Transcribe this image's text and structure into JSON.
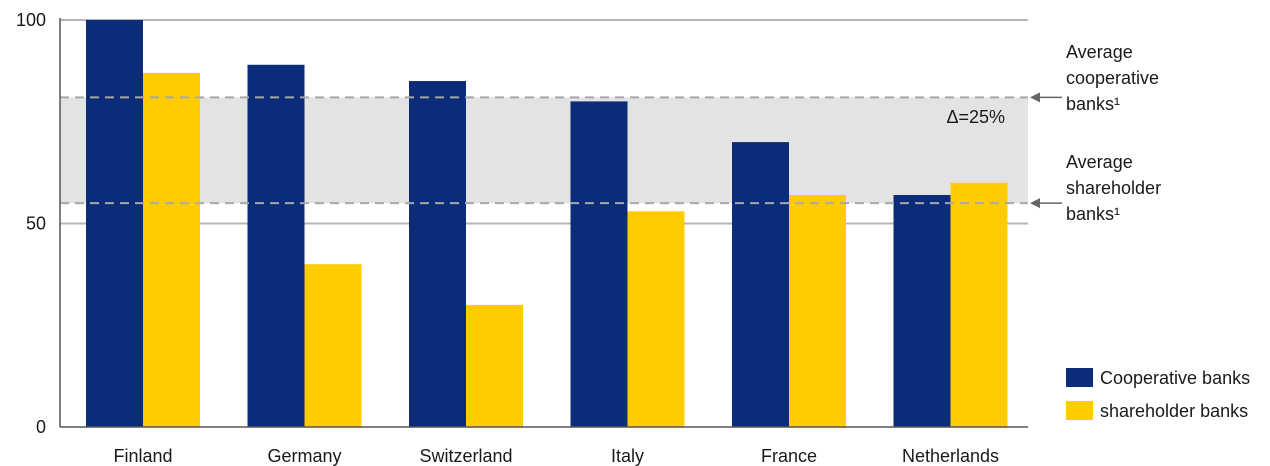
{
  "chart_data": {
    "type": "bar",
    "title": "",
    "xlabel": "",
    "ylabel": "",
    "ylim": [
      0,
      100
    ],
    "yticks": [
      "0",
      "50",
      "100"
    ],
    "grid": true,
    "categories": [
      "Finland",
      "Germany",
      "Switzerland",
      "Italy",
      "France",
      "Netherlands"
    ],
    "series": [
      {
        "name": "Cooperative banks",
        "color": "#0b2c79",
        "values": [
          100,
          89,
          85,
          80,
          70,
          57
        ]
      },
      {
        "name": "shareholder banks",
        "color": "#ffcc00",
        "values": [
          87,
          40,
          30,
          53,
          57,
          60
        ]
      }
    ],
    "reference_lines": [
      {
        "label_lines": [
          "Average",
          "cooperative",
          "banks¹"
        ],
        "value": 81
      },
      {
        "label_lines": [
          "Average",
          "shareholder",
          "banks¹"
        ],
        "value": 55
      }
    ],
    "band_label": "Δ=25%",
    "legend_position": "bottom-right"
  }
}
